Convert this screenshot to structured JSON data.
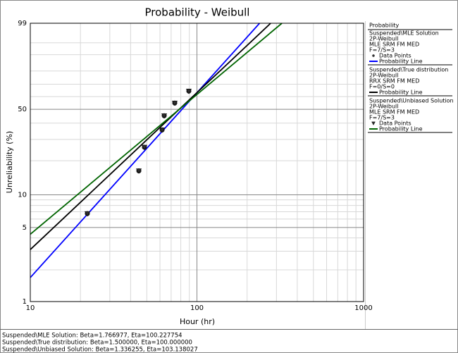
{
  "chart_data": {
    "type": "weibull",
    "title": "Probability - Weibull",
    "xlabel": "Hour (hr)",
    "ylabel": "Unreliability (%)",
    "xscale": "log",
    "yscale": "weibull",
    "xlim": [
      10,
      1000
    ],
    "ylim": [
      1,
      99
    ],
    "xticks": [
      10,
      100,
      1000
    ],
    "yticks": [
      1,
      5,
      10,
      50,
      99
    ],
    "xminorticks": [
      20,
      30,
      40,
      50,
      60,
      70,
      80,
      90,
      200,
      300,
      400,
      500,
      600,
      700,
      800,
      900
    ],
    "yminorticks": [
      2,
      3,
      4,
      6,
      7,
      8,
      9,
      20,
      30,
      40,
      60,
      70,
      80,
      90,
      95
    ],
    "grid": true,
    "legend": {
      "title": "Probability",
      "groups": [
        {
          "lines": [
            "Suspended\\MLE Solution",
            "2P-Weibull",
            "MLE SRM FM MED",
            "F=7/S=3"
          ],
          "series": [
            {
              "name": "Data Points",
              "marker": "circle",
              "color": "#303030",
              "x": [
                22.0,
                44.8,
                48.4,
                61.8,
                63.6,
                73.6,
                89.4
              ],
              "values": [
                6.73,
                16.35,
                25.96,
                35.58,
                45.19,
                54.81,
                64.42
              ]
            },
            {
              "name": "Probability Line",
              "marker": "line",
              "color": "#0000ff",
              "x": [
                10,
                237.6
              ],
              "values": [
                1.69,
                99
              ]
            }
          ]
        },
        {
          "lines": [
            "Suspended\\True distribution",
            "2P-Weibull",
            "RRX SRM FM MED",
            "F=0/S=0"
          ],
          "series": [
            {
              "name": "Probability Line",
              "marker": "line",
              "color": "#000000",
              "x": [
                10,
                276.8
              ],
              "values": [
                3.11,
                99
              ]
            }
          ]
        },
        {
          "lines": [
            "Suspended\\Unbiased Solution",
            "2P-Weibull",
            "MLE SRM FM MED",
            "F=7/S=3"
          ],
          "series": [
            {
              "name": "Data Points",
              "marker": "triangle",
              "color": "#303030",
              "x": [
                22.0,
                44.8,
                48.4,
                61.8,
                63.6,
                73.6,
                89.4
              ],
              "values": [
                6.73,
                16.35,
                25.96,
                35.58,
                45.19,
                54.81,
                64.42
              ]
            },
            {
              "name": "Probability Line",
              "marker": "line",
              "color": "#006400",
              "x": [
                10,
                323.4
              ],
              "values": [
                4.33,
                99
              ]
            }
          ]
        }
      ]
    },
    "footer": [
      "Suspended\\MLE Solution: Beta=1.766977, Eta=100.227754",
      "Suspended\\True distribution: Beta=1.500000, Eta=100.000000",
      "Suspended\\Unbiased Solution: Beta=1.336255, Eta=103.138027"
    ]
  }
}
